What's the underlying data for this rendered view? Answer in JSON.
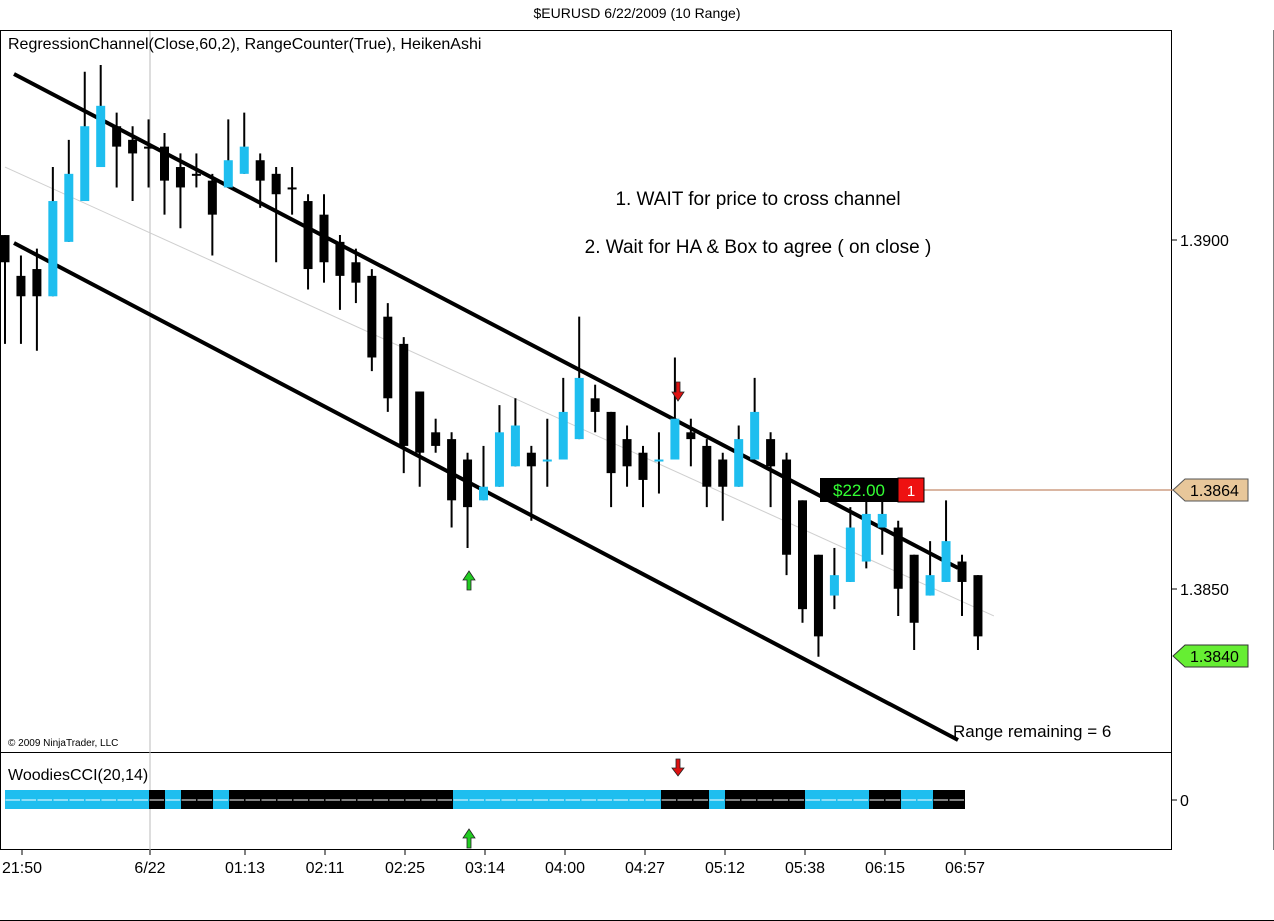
{
  "window": {
    "title": "$EURUSD  6/22/2009 (10 Range)"
  },
  "price_panel": {
    "indicator_label": "RegressionChannel(Close,60,2), RangeCounter(True), HeikenAshi",
    "copyright": "© 2009 NinjaTrader, LLC",
    "annotation_1": "1. WAIT for price to cross channel",
    "annotation_2": "2. Wait for HA & Box to agree ( on close )",
    "range_remaining": "Range remaining = 6",
    "position_pnl": "$22.00",
    "position_qty": "1",
    "entry_price_label": "1.3864",
    "last_price_label": "1.3840",
    "y_ticks": [
      "1.3900",
      "1.3850"
    ]
  },
  "cci_panel": {
    "indicator_label": "WoodiesCCI(20,14)",
    "zero_label": "0"
  },
  "x_axis": {
    "labels": [
      "21:50",
      "6/22",
      "01:13",
      "02:11",
      "02:25",
      "03:14",
      "04:00",
      "04:27",
      "05:12",
      "05:38",
      "06:15",
      "06:57"
    ]
  },
  "colors": {
    "bull": "#1ebeef",
    "bear": "#000000",
    "entry_tag": "#e8c79a",
    "last_tag": "#66ee33",
    "pnl_bg": "#000000",
    "pnl_text": "#33ff33",
    "qty_bg": "#ee1111",
    "arrow_up": "#22cc22",
    "arrow_down": "#dd1111"
  },
  "chart_data": {
    "type": "candlestick",
    "title": "$EURUSD  6/22/2009 (10 Range)",
    "y_range": [
      1.3823,
      1.3929
    ],
    "x_tick_labels": [
      "21:50",
      "6/22",
      "01:13",
      "02:11",
      "02:25",
      "03:14",
      "04:00",
      "04:27",
      "05:12",
      "05:38",
      "06:15",
      "06:57"
    ],
    "candles": [
      {
        "open": 1.3899,
        "close": 1.3895,
        "high": 1.3899,
        "low": 1.3883
      },
      {
        "open": 1.3893,
        "close": 1.389,
        "high": 1.3896,
        "low": 1.3883
      },
      {
        "open": 1.3894,
        "close": 1.389,
        "high": 1.3897,
        "low": 1.3882
      },
      {
        "open": 1.389,
        "close": 1.3904,
        "high": 1.3909,
        "low": 1.389
      },
      {
        "open": 1.3898,
        "close": 1.3908,
        "high": 1.3913,
        "low": 1.3898
      },
      {
        "open": 1.3904,
        "close": 1.3915,
        "high": 1.3923,
        "low": 1.3904
      },
      {
        "open": 1.3909,
        "close": 1.3918,
        "high": 1.3924,
        "low": 1.3909
      },
      {
        "open": 1.3915,
        "close": 1.3912,
        "high": 1.3917,
        "low": 1.3906
      },
      {
        "open": 1.3913,
        "close": 1.3911,
        "high": 1.3915,
        "low": 1.3904
      },
      {
        "open": 1.3912,
        "close": 1.3912,
        "high": 1.3916,
        "low": 1.3906
      },
      {
        "open": 1.3912,
        "close": 1.3907,
        "high": 1.3914,
        "low": 1.3902
      },
      {
        "open": 1.3909,
        "close": 1.3906,
        "high": 1.3911,
        "low": 1.39
      },
      {
        "open": 1.3908,
        "close": 1.3908,
        "high": 1.3911,
        "low": 1.3906
      },
      {
        "open": 1.3907,
        "close": 1.3902,
        "high": 1.3908,
        "low": 1.3896
      },
      {
        "open": 1.3906,
        "close": 1.391,
        "high": 1.3916,
        "low": 1.3906
      },
      {
        "open": 1.3908,
        "close": 1.3912,
        "high": 1.3917,
        "low": 1.3908
      },
      {
        "open": 1.391,
        "close": 1.3907,
        "high": 1.3911,
        "low": 1.3903
      },
      {
        "open": 1.3908,
        "close": 1.3905,
        "high": 1.3909,
        "low": 1.3895
      },
      {
        "open": 1.3906,
        "close": 1.3906,
        "high": 1.3909,
        "low": 1.3902
      },
      {
        "open": 1.3904,
        "close": 1.3894,
        "high": 1.3905,
        "low": 1.3891
      },
      {
        "open": 1.3902,
        "close": 1.3895,
        "high": 1.3905,
        "low": 1.3892
      },
      {
        "open": 1.3898,
        "close": 1.3893,
        "high": 1.3899,
        "low": 1.3888
      },
      {
        "open": 1.3895,
        "close": 1.3892,
        "high": 1.3897,
        "low": 1.3889
      },
      {
        "open": 1.3893,
        "close": 1.3881,
        "high": 1.3894,
        "low": 1.3879
      },
      {
        "open": 1.3887,
        "close": 1.3875,
        "high": 1.3889,
        "low": 1.3873
      },
      {
        "open": 1.3883,
        "close": 1.3868,
        "high": 1.3884,
        "low": 1.3864
      },
      {
        "open": 1.3876,
        "close": 1.3867,
        "high": 1.3876,
        "low": 1.3862
      },
      {
        "open": 1.387,
        "close": 1.3868,
        "high": 1.3872,
        "low": 1.3867
      },
      {
        "open": 1.3869,
        "close": 1.386,
        "high": 1.387,
        "low": 1.3856
      },
      {
        "open": 1.3866,
        "close": 1.3859,
        "high": 1.3867,
        "low": 1.3853
      },
      {
        "open": 1.386,
        "close": 1.3862,
        "high": 1.3868,
        "low": 1.386
      },
      {
        "open": 1.3862,
        "close": 1.387,
        "high": 1.3874,
        "low": 1.3862
      },
      {
        "open": 1.3865,
        "close": 1.3871,
        "high": 1.3875,
        "low": 1.3865
      },
      {
        "open": 1.3867,
        "close": 1.3865,
        "high": 1.3868,
        "low": 1.3857
      },
      {
        "open": 1.3866,
        "close": 1.3866,
        "high": 1.3872,
        "low": 1.3862
      },
      {
        "open": 1.3866,
        "close": 1.3873,
        "high": 1.3878,
        "low": 1.3866
      },
      {
        "open": 1.3869,
        "close": 1.3878,
        "high": 1.3887,
        "low": 1.3869
      },
      {
        "open": 1.3875,
        "close": 1.3873,
        "high": 1.3877,
        "low": 1.387
      },
      {
        "open": 1.3873,
        "close": 1.3864,
        "high": 1.3873,
        "low": 1.3859
      },
      {
        "open": 1.3869,
        "close": 1.3865,
        "high": 1.3871,
        "low": 1.3862
      },
      {
        "open": 1.3867,
        "close": 1.3863,
        "high": 1.3868,
        "low": 1.3859
      },
      {
        "open": 1.3866,
        "close": 1.3866,
        "high": 1.387,
        "low": 1.3861
      },
      {
        "open": 1.3866,
        "close": 1.3872,
        "high": 1.3881,
        "low": 1.3866
      },
      {
        "open": 1.387,
        "close": 1.3869,
        "high": 1.3872,
        "low": 1.3865
      },
      {
        "open": 1.3868,
        "close": 1.3862,
        "high": 1.3869,
        "low": 1.3859
      },
      {
        "open": 1.3866,
        "close": 1.3862,
        "high": 1.3867,
        "low": 1.3857
      },
      {
        "open": 1.3862,
        "close": 1.3869,
        "high": 1.3871,
        "low": 1.3862
      },
      {
        "open": 1.3866,
        "close": 1.3873,
        "high": 1.3878,
        "low": 1.3866
      },
      {
        "open": 1.3869,
        "close": 1.3865,
        "high": 1.387,
        "low": 1.3859
      },
      {
        "open": 1.3866,
        "close": 1.3852,
        "high": 1.3867,
        "low": 1.3849
      },
      {
        "open": 1.386,
        "close": 1.3844,
        "high": 1.386,
        "low": 1.3842
      },
      {
        "open": 1.3852,
        "close": 1.384,
        "high": 1.3852,
        "low": 1.3837
      },
      {
        "open": 1.3846,
        "close": 1.3849,
        "high": 1.3853,
        "low": 1.3844
      },
      {
        "open": 1.3848,
        "close": 1.3856,
        "high": 1.3859,
        "low": 1.3848
      },
      {
        "open": 1.3851,
        "close": 1.3858,
        "high": 1.3861,
        "low": 1.385
      },
      {
        "open": 1.3856,
        "close": 1.3858,
        "high": 1.3862,
        "low": 1.3852
      },
      {
        "open": 1.3856,
        "close": 1.3847,
        "high": 1.3857,
        "low": 1.3843
      },
      {
        "open": 1.3852,
        "close": 1.3842,
        "high": 1.3852,
        "low": 1.3838
      },
      {
        "open": 1.3846,
        "close": 1.3849,
        "high": 1.3854,
        "low": 1.3846
      },
      {
        "open": 1.3848,
        "close": 1.3854,
        "high": 1.386,
        "low": 1.3848
      },
      {
        "open": 1.3851,
        "close": 1.3848,
        "high": 1.3852,
        "low": 1.3843
      },
      {
        "open": 1.3849,
        "close": 1.384,
        "high": 1.3849,
        "low": 1.3838
      }
    ],
    "candle_colors": [
      "bear",
      "bear",
      "bear",
      "bull",
      "bull",
      "bull",
      "bull",
      "bear",
      "bear",
      "bear",
      "bear",
      "bear",
      "bear",
      "bear",
      "bull",
      "bull",
      "bear",
      "bear",
      "bear",
      "bear",
      "bear",
      "bear",
      "bear",
      "bear",
      "bear",
      "bear",
      "bear",
      "bear",
      "bear",
      "bear",
      "bull",
      "bull",
      "bull",
      "bear",
      "bull",
      "bull",
      "bull",
      "bear",
      "bear",
      "bear",
      "bear",
      "bull",
      "bull",
      "bear",
      "bear",
      "bear",
      "bull",
      "bull",
      "bear",
      "bear",
      "bear",
      "bear",
      "bull",
      "bull",
      "bull",
      "bull",
      "bear",
      "bear",
      "bull",
      "bull",
      "bear",
      "bear"
    ],
    "channel": {
      "upper": [
        [
          1.392,
          0
        ],
        [
          1.3857,
          62
        ]
      ],
      "lower": [
        [
          1.3898,
          0
        ],
        [
          1.3829,
          62
        ]
      ],
      "mid": [
        [
          1.3909,
          0
        ],
        [
          1.3843,
          62
        ]
      ]
    },
    "entry_price": 1.3864,
    "last_price": 1.384,
    "cci_segments": [
      "bull",
      "bull",
      "bull",
      "bull",
      "bull",
      "bull",
      "bull",
      "bull",
      "bull",
      "bear",
      "bull",
      "bear",
      "bear",
      "bull",
      "bear",
      "bear",
      "bear",
      "bear",
      "bear",
      "bear",
      "bear",
      "bear",
      "bear",
      "bear",
      "bear",
      "bear",
      "bear",
      "bear",
      "bull",
      "bull",
      "bull",
      "bull",
      "bull",
      "bull",
      "bull",
      "bull",
      "bull",
      "bull",
      "bull",
      "bull",
      "bull",
      "bear",
      "bear",
      "bear",
      "bull",
      "bear",
      "bear",
      "bear",
      "bear",
      "bear",
      "bull",
      "bull",
      "bull",
      "bull",
      "bear",
      "bear",
      "bull",
      "bull",
      "bear",
      "bear"
    ]
  }
}
